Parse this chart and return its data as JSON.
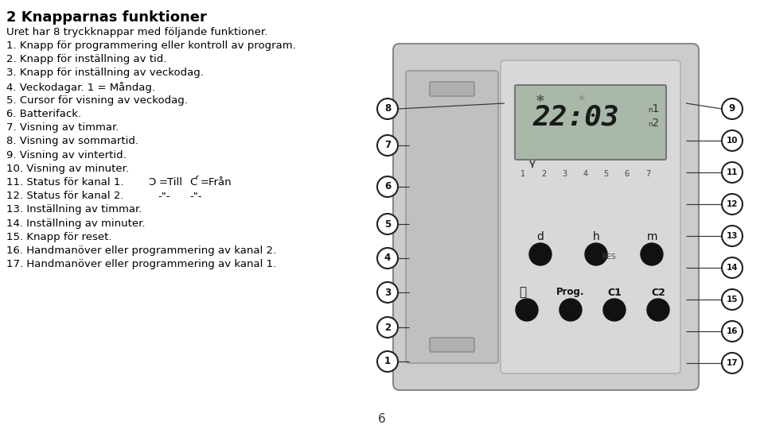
{
  "title": "2 Knapparnas funktioner",
  "intro": "Uret har 8 tryckknappar med följande funktioner.",
  "text_lines": [
    "1. Knapp för programmering eller kontroll av program.",
    "2. Knapp för inställning av tid.",
    "3. Knapp för inställning av veckodag.",
    "4. Veckodagar. 1 = Måndag.",
    "5. Cursor för visning av veckodag.",
    "6. Batterifack.",
    "7. Visning av timmar.",
    "8. Visning av sommartid.",
    "9. Visning av vintertid.",
    "10. Visning av minuter.",
    "11. Status för kanal 1.  Δ=Till  Ɔ=Från",
    "12. Status för kanal 2.   -\"-      -\"-",
    "13. Inställning av timmar.",
    "14. Inställning av minuter.",
    "15. Knapp för reset.",
    "16. Handmanöver eller programmering av kanal 2.",
    "17. Handmanöver eller programmering av kanal 1."
  ],
  "bg_color": "#ffffff",
  "device_bg": "#cccccc",
  "device_right_bg": "#d8d8d8",
  "lcd_bg": "#aab8aa",
  "button_color": "#111111",
  "text_color": "#000000",
  "line_color": "#333333"
}
